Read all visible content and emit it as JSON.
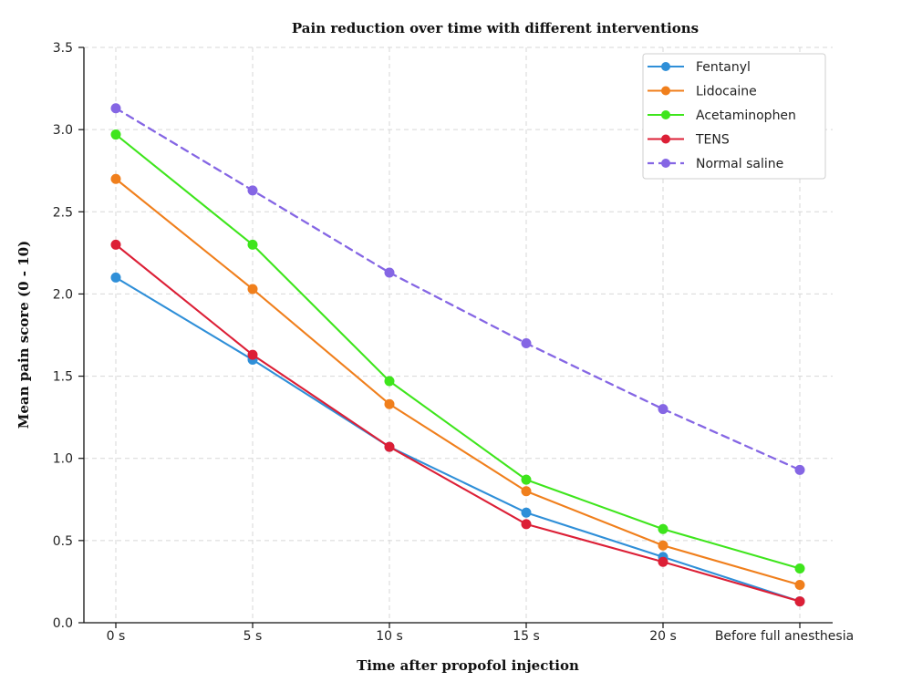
{
  "chart_data": {
    "type": "line",
    "title": "Pain reduction over time with different interventions",
    "xlabel": "Time after propofol injection",
    "ylabel": "Mean pain score (0 - 10)",
    "categories": [
      "0 s",
      "5 s",
      "10 s",
      "15 s",
      "20 s",
      "Before full anesthesia"
    ],
    "ylim": [
      0,
      3.5
    ],
    "yticks": [
      "0.0",
      "0.5",
      "1.0",
      "1.5",
      "2.0",
      "2.5",
      "3.0",
      "3.5"
    ],
    "grid": true,
    "legend_position": "top-right",
    "series": [
      {
        "name": "Fentanyl",
        "color": "#2f8fd8",
        "style": "solid",
        "values": [
          2.1,
          1.6,
          1.07,
          0.67,
          0.4,
          0.13
        ]
      },
      {
        "name": "Lidocaine",
        "color": "#f07f1c",
        "style": "solid",
        "values": [
          2.7,
          2.03,
          1.33,
          0.8,
          0.47,
          0.23
        ]
      },
      {
        "name": "Acetaminophen",
        "color": "#3ee51c",
        "style": "solid",
        "values": [
          2.97,
          2.3,
          1.47,
          0.87,
          0.57,
          0.33
        ]
      },
      {
        "name": "TENS",
        "color": "#dc1f36",
        "style": "solid",
        "values": [
          2.3,
          1.63,
          1.07,
          0.6,
          0.37,
          0.13
        ]
      },
      {
        "name": "Normal saline",
        "color": "#8566e4",
        "style": "dashed",
        "values": [
          3.13,
          2.63,
          2.13,
          1.7,
          1.3,
          0.93
        ]
      }
    ]
  }
}
